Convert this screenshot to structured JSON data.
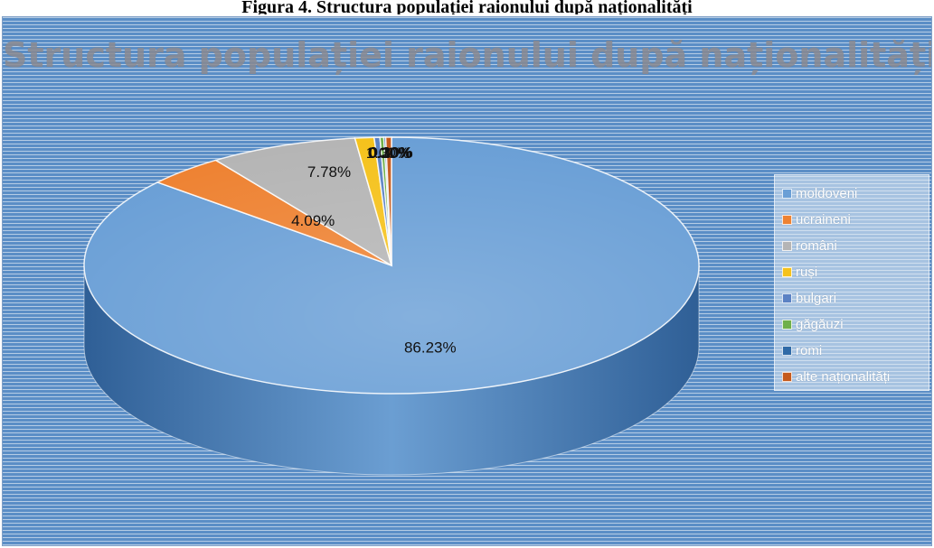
{
  "caption": "Figura 4. Structura populației raionului după naționalități",
  "chart_data": {
    "type": "pie",
    "title": "Structura populației raionului după naționalități",
    "legend_position": "right",
    "slices": [
      {
        "name": "moldoveni",
        "value": 86.23,
        "label": "86.23%",
        "color": "#6a9fd6"
      },
      {
        "name": "ucraineni",
        "value": 4.09,
        "label": "4.09%",
        "color": "#ee8232"
      },
      {
        "name": "români",
        "value": 7.78,
        "label": "7.78%",
        "color": "#b5b5b5"
      },
      {
        "name": "ruși",
        "value": 1.0,
        "label": "1.00%",
        "color": "#f5c21c"
      },
      {
        "name": "bulgari",
        "value": 0.3,
        "label": "0.30%",
        "color": "#5b82c4"
      },
      {
        "name": "găgăuzi",
        "value": 0.2,
        "label": "0.20%",
        "color": "#6fb04a"
      },
      {
        "name": "romi",
        "value": 0.1,
        "label": "0.10%",
        "color": "#2f6aa7"
      },
      {
        "name": "alte naționalități",
        "value": 0.3,
        "label": "0.30%",
        "color": "#c55a1c"
      }
    ]
  }
}
